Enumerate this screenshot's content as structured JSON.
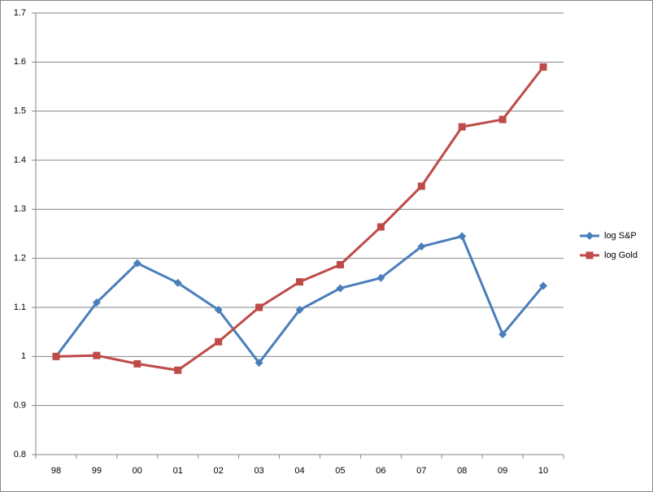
{
  "chart_data": {
    "type": "line",
    "categories": [
      "98",
      "99",
      "00",
      "01",
      "02",
      "03",
      "04",
      "05",
      "06",
      "07",
      "08",
      "09",
      "10"
    ],
    "series": [
      {
        "name": "log S&P",
        "color": "#4a7ebb",
        "marker": "diamond",
        "values": [
          1.0,
          1.11,
          1.19,
          1.15,
          1.095,
          0.987,
          1.095,
          1.139,
          1.16,
          1.224,
          1.245,
          1.045,
          1.144
        ]
      },
      {
        "name": "log Gold",
        "color": "#be4b48",
        "marker": "square",
        "values": [
          1.0,
          1.002,
          0.985,
          0.972,
          1.03,
          1.1,
          1.152,
          1.187,
          1.264,
          1.347,
          1.468,
          1.483,
          1.59
        ]
      }
    ],
    "ylim": [
      0.8,
      1.7
    ],
    "yticks": [
      0.8,
      0.9,
      1,
      1.1,
      1.2,
      1.3,
      1.4,
      1.5,
      1.6,
      1.7
    ],
    "grid": true,
    "legend": "right"
  }
}
